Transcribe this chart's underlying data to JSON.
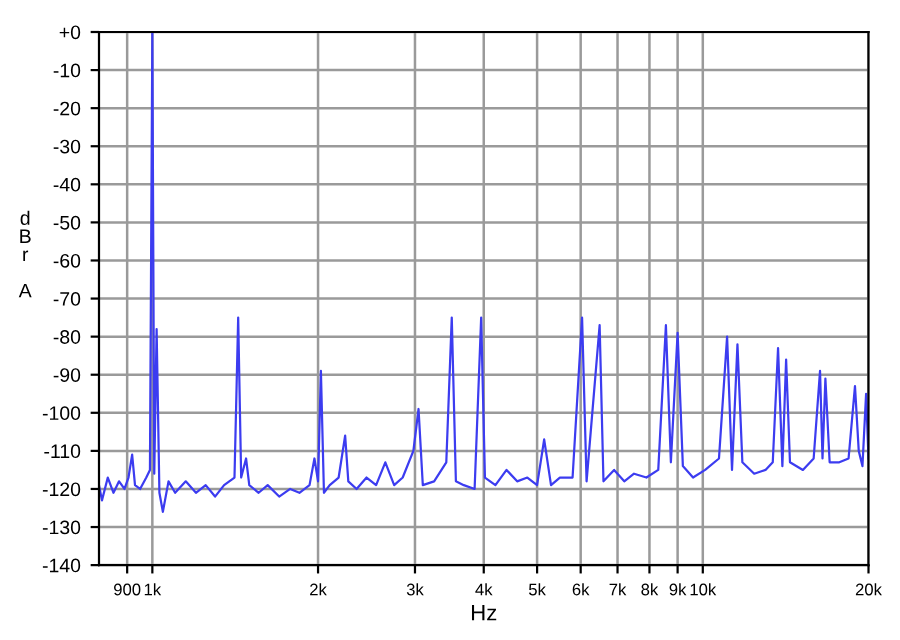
{
  "chart_data": {
    "type": "line",
    "xlabel": "Hz",
    "ylabel": "dBr A",
    "log": "x",
    "grid": true,
    "line_style": "solid",
    "xlim": [
      800,
      20000
    ],
    "xticks": [
      {
        "value": 900,
        "label": "900"
      },
      {
        "value": 1000,
        "label": "1k"
      },
      {
        "value": 2000,
        "label": "2k"
      },
      {
        "value": 3000,
        "label": "3k"
      },
      {
        "value": 4000,
        "label": "4k"
      },
      {
        "value": 5000,
        "label": "5k"
      },
      {
        "value": 6000,
        "label": "6k"
      },
      {
        "value": 7000,
        "label": "7k"
      },
      {
        "value": 8000,
        "label": "8k"
      },
      {
        "value": 9000,
        "label": "9k"
      },
      {
        "value": 10000,
        "label": "10k"
      },
      {
        "value": 20000,
        "label": "20k"
      }
    ],
    "ylim": [
      -140,
      0
    ],
    "yticks": [
      {
        "value": 0,
        "label": "+0"
      },
      -10,
      -20,
      -30,
      -40,
      -50,
      -60,
      -70,
      -80,
      -90,
      -100,
      -110,
      -120,
      -130,
      -140
    ],
    "series": [
      {
        "color": "#3c3cf0",
        "x": [
          800,
          810,
          830,
          850,
          870,
          890,
          905,
          919,
          930,
          950,
          975,
          990,
          1000,
          1008,
          1018,
          1030,
          1045,
          1070,
          1100,
          1150,
          1200,
          1250,
          1300,
          1350,
          1410,
          1432,
          1450,
          1480,
          1500,
          1560,
          1620,
          1700,
          1780,
          1850,
          1930,
          1970,
          2000,
          2024,
          2050,
          2100,
          2180,
          2240,
          2270,
          2350,
          2450,
          2550,
          2650,
          2750,
          2850,
          2980,
          3045,
          3100,
          3250,
          3420,
          3499,
          3560,
          3680,
          3850,
          3957,
          4020,
          4200,
          4400,
          4600,
          4800,
          5000,
          5150,
          5300,
          5500,
          5800,
          6035,
          6150,
          6495,
          6600,
          6900,
          7200,
          7500,
          7900,
          8300,
          8570,
          8750,
          9000,
          9200,
          9600,
          10100,
          10700,
          11070,
          11300,
          11560,
          11800,
          12400,
          13000,
          13400,
          13700,
          13950,
          14170,
          14400,
          15200,
          15900,
          16330,
          16500,
          16700,
          17000,
          17700,
          18400,
          18900,
          19200,
          19500,
          19800,
          20000
        ],
        "values": [
          -119,
          -123,
          -117,
          -121,
          -118,
          -120,
          -117,
          -111,
          -119,
          -120,
          -117,
          -115,
          0,
          -116,
          -78,
          -121,
          -126,
          -118,
          -121,
          -118,
          -121,
          -119,
          -122,
          -119,
          -117,
          -75,
          -117,
          -112,
          -119,
          -121,
          -119,
          -122,
          -120,
          -121,
          -119,
          -112,
          -118,
          -89,
          -121,
          -119,
          -117,
          -106,
          -118,
          -120,
          -117,
          -119,
          -113,
          -119,
          -117,
          -110,
          -99,
          -119,
          -118,
          -113,
          -75,
          -118,
          -119,
          -120,
          -75,
          -117,
          -119,
          -115,
          -118,
          -117,
          -119,
          -107,
          -119,
          -117,
          -117,
          -75,
          -118,
          -77,
          -118,
          -115,
          -118,
          -116,
          -117,
          -115,
          -77,
          -113,
          -79,
          -114,
          -117,
          -115,
          -112,
          -80,
          -115,
          -82,
          -113,
          -116,
          -115,
          -113,
          -83,
          -114,
          -86,
          -113,
          -115,
          -112,
          -89,
          -112,
          -91,
          -113,
          -113,
          -112,
          -93,
          -110,
          -114,
          -95,
          -112
        ]
      }
    ]
  }
}
